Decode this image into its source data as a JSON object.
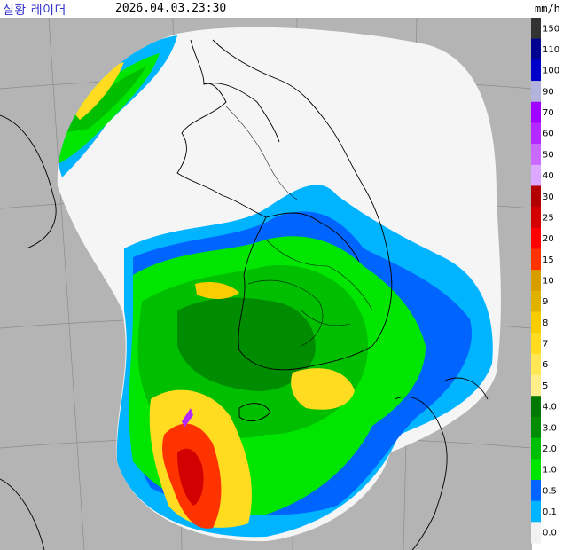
{
  "header": {
    "title": "실황 레이더",
    "timestamp": "2026.04.03.23:30",
    "unit": "mm/h"
  },
  "legend": [
    {
      "label": "150",
      "color": "#333333"
    },
    {
      "label": "110",
      "color": "#000390"
    },
    {
      "label": "100",
      "color": "#0000c8"
    },
    {
      "label": "90",
      "color": "#b3b4dd"
    },
    {
      "label": "70",
      "color": "#9f00ff"
    },
    {
      "label": "60",
      "color": "#b329ff"
    },
    {
      "label": "50",
      "color": "#c969ff"
    },
    {
      "label": "40",
      "color": "#dda8ff"
    },
    {
      "label": "30",
      "color": "#b30000"
    },
    {
      "label": "25",
      "color": "#d20000"
    },
    {
      "label": "20",
      "color": "#ff0000"
    },
    {
      "label": "15",
      "color": "#ff3300"
    },
    {
      "label": "10",
      "color": "#d69e00"
    },
    {
      "label": "9",
      "color": "#e0b300"
    },
    {
      "label": "8",
      "color": "#f9cd00"
    },
    {
      "label": "7",
      "color": "#ffdc1f"
    },
    {
      "label": "6",
      "color": "#ffe653"
    },
    {
      "label": "5",
      "color": "#ffee8a"
    },
    {
      "label": "4.0",
      "color": "#007700"
    },
    {
      "label": "3.0",
      "color": "#008c00"
    },
    {
      "label": "2.0",
      "color": "#00be00"
    },
    {
      "label": "1.0",
      "color": "#00e600"
    },
    {
      "label": "0.5",
      "color": "#0064ff"
    },
    {
      "label": "0.1",
      "color": "#00b4ff"
    },
    {
      "label": "0.0",
      "color": "#f2f2f2"
    }
  ],
  "colors": {
    "background_land": "#b4b4b4",
    "coverage": "#f5f5f5",
    "coastline": "#000000",
    "grid": "#8c8c8c"
  }
}
